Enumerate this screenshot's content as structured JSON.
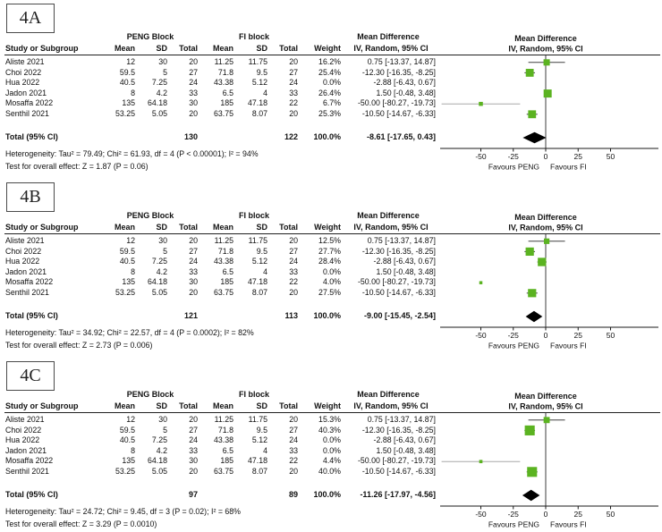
{
  "colors": {
    "marker_green": "#5bb321",
    "diamond_black": "#000000",
    "ci_line": "#404040",
    "ci_line_muted": "#a8a8a8",
    "axis": "#1a1a1a",
    "zero_line": "#3c3c3c"
  },
  "chart_data": [
    {
      "type": "table",
      "subtype": "forest-plot-mean-difference",
      "panel": "4A",
      "group_headers": [
        "PENG Block",
        "FI block"
      ],
      "columns": [
        "Study or Subgroup",
        "Mean",
        "SD",
        "Total",
        "Mean",
        "SD",
        "Total",
        "Weight"
      ],
      "effect_header": [
        "Mean Difference",
        "IV, Random, 95% CI"
      ],
      "rows": [
        {
          "study": "Aliste 2021",
          "mean1": "12",
          "sd1": "30",
          "total1": "20",
          "mean2": "11.25",
          "sd2": "11.75",
          "total2": "20",
          "weight": "16.2%",
          "ci_text": "0.75 [-13.37, 14.87]",
          "est": 0.75,
          "lo": -13.37,
          "hi": 14.87,
          "wt": 16.2
        },
        {
          "study": "Choi 2022",
          "mean1": "59.5",
          "sd1": "5",
          "total1": "27",
          "mean2": "71.8",
          "sd2": "9.5",
          "total2": "27",
          "weight": "25.4%",
          "ci_text": "-12.30 [-16.35, -8.25]",
          "est": -12.3,
          "lo": -16.35,
          "hi": -8.25,
          "wt": 25.4
        },
        {
          "study": "Hua 2022",
          "mean1": "40.5",
          "sd1": "7.25",
          "total1": "24",
          "mean2": "43.38",
          "sd2": "5.12",
          "total2": "24",
          "weight": "0.0%",
          "ci_text": "-2.88 [-6.43, 0.67]",
          "est": -2.88,
          "lo": -6.43,
          "hi": 0.67,
          "wt": 0
        },
        {
          "study": "Jadon 2021",
          "mean1": "8",
          "sd1": "4.2",
          "total1": "33",
          "mean2": "6.5",
          "sd2": "4",
          "total2": "33",
          "weight": "26.4%",
          "ci_text": "1.50 [-0.48, 3.48]",
          "est": 1.5,
          "lo": -0.48,
          "hi": 3.48,
          "wt": 26.4
        },
        {
          "study": "Mosaffa 2022",
          "mean1": "135",
          "sd1": "64.18",
          "total1": "30",
          "mean2": "185",
          "sd2": "47.18",
          "total2": "22",
          "weight": "6.7%",
          "ci_text": "-50.00 [-80.27, -19.73]",
          "est": -50,
          "lo": -80.27,
          "hi": -19.73,
          "wt": 6.7,
          "muted_line": true
        },
        {
          "study": "Senthil 2021",
          "mean1": "53.25",
          "sd1": "5.05",
          "total1": "20",
          "mean2": "63.75",
          "sd2": "8.07",
          "total2": "20",
          "weight": "25.3%",
          "ci_text": "-10.50 [-14.67, -6.33]",
          "est": -10.5,
          "lo": -14.67,
          "hi": -6.33,
          "wt": 25.3
        }
      ],
      "total": {
        "label": "Total (95% CI)",
        "total1": "130",
        "total2": "122",
        "weight": "100.0%",
        "ci_text": "-8.61 [-17.65, 0.43]",
        "est": -8.61,
        "lo": -17.65,
        "hi": 0.43
      },
      "heterogeneity": "Heterogeneity: Tau² = 79.49; Chi² = 61.93, df = 4 (P < 0.00001); I² = 94%",
      "overall_effect": "Test for overall effect: Z = 1.87 (P = 0.06)",
      "axis": {
        "tick_labels": [
          "-50",
          "-25",
          "0",
          "25",
          "50"
        ],
        "tick_values": [
          -50,
          -25,
          0,
          25,
          50
        ],
        "favours_left": "Favours PENG",
        "favours_right": "Favours FI"
      }
    },
    {
      "type": "table",
      "subtype": "forest-plot-mean-difference",
      "panel": "4B",
      "group_headers": [
        "PENG Block",
        "FI block"
      ],
      "columns": [
        "Study or Subgroup",
        "Mean",
        "SD",
        "Total",
        "Mean",
        "SD",
        "Total",
        "Weight"
      ],
      "effect_header": [
        "Mean Difference",
        "IV, Random, 95% CI"
      ],
      "rows": [
        {
          "study": "Aliste 2021",
          "mean1": "12",
          "sd1": "30",
          "total1": "20",
          "mean2": "11.25",
          "sd2": "11.75",
          "total2": "20",
          "weight": "12.5%",
          "ci_text": "0.75 [-13.37, 14.87]",
          "est": 0.75,
          "lo": -13.37,
          "hi": 14.87,
          "wt": 12.5
        },
        {
          "study": "Choi 2022",
          "mean1": "59.5",
          "sd1": "5",
          "total1": "27",
          "mean2": "71.8",
          "sd2": "9.5",
          "total2": "27",
          "weight": "27.7%",
          "ci_text": "-12.30 [-16.35, -8.25]",
          "est": -12.3,
          "lo": -16.35,
          "hi": -8.25,
          "wt": 27.7
        },
        {
          "study": "Hua 2022",
          "mean1": "40.5",
          "sd1": "7.25",
          "total1": "24",
          "mean2": "43.38",
          "sd2": "5.12",
          "total2": "24",
          "weight": "28.4%",
          "ci_text": "-2.88 [-6.43, 0.67]",
          "est": -2.88,
          "lo": -6.43,
          "hi": 0.67,
          "wt": 28.4
        },
        {
          "study": "Jadon 2021",
          "mean1": "8",
          "sd1": "4.2",
          "total1": "33",
          "mean2": "6.5",
          "sd2": "4",
          "total2": "33",
          "weight": "0.0%",
          "ci_text": "1.50 [-0.48, 3.48]",
          "est": 1.5,
          "lo": -0.48,
          "hi": 3.48,
          "wt": 0
        },
        {
          "study": "Mosaffa 2022",
          "mean1": "135",
          "sd1": "64.18",
          "total1": "30",
          "mean2": "185",
          "sd2": "47.18",
          "total2": "22",
          "weight": "4.0%",
          "ci_text": "-50.00 [-80.27, -19.73]",
          "est": -50,
          "lo": -80.27,
          "hi": -19.73,
          "wt": 4.0,
          "show_line": false
        },
        {
          "study": "Senthil 2021",
          "mean1": "53.25",
          "sd1": "5.05",
          "total1": "20",
          "mean2": "63.75",
          "sd2": "8.07",
          "total2": "20",
          "weight": "27.5%",
          "ci_text": "-10.50 [-14.67, -6.33]",
          "est": -10.5,
          "lo": -14.67,
          "hi": -6.33,
          "wt": 27.5
        }
      ],
      "total": {
        "label": "Total (95% CI)",
        "total1": "121",
        "total2": "113",
        "weight": "100.0%",
        "ci_text": "-9.00 [-15.45, -2.54]",
        "est": -9.0,
        "lo": -15.45,
        "hi": -2.54
      },
      "heterogeneity": "Heterogeneity: Tau² = 34.92; Chi² = 22.57, df = 4 (P = 0.0002); I² = 82%",
      "overall_effect": "Test for overall effect: Z = 2.73 (P = 0.006)",
      "axis": {
        "tick_labels": [
          "-50",
          "-25",
          "0",
          "25",
          "50"
        ],
        "tick_values": [
          -50,
          -25,
          0,
          25,
          50
        ],
        "favours_left": "Favours PENG",
        "favours_right": "Favours FI"
      }
    },
    {
      "type": "table",
      "subtype": "forest-plot-mean-difference",
      "panel": "4C",
      "group_headers": [
        "PENG Block",
        "FI block"
      ],
      "columns": [
        "Study or Subgroup",
        "Mean",
        "SD",
        "Total",
        "Mean",
        "SD",
        "Total",
        "Weight"
      ],
      "effect_header": [
        "Mean Difference",
        "IV, Random, 95% CI"
      ],
      "rows": [
        {
          "study": "Aliste 2021",
          "mean1": "12",
          "sd1": "30",
          "total1": "20",
          "mean2": "11.25",
          "sd2": "11.75",
          "total2": "20",
          "weight": "15.3%",
          "ci_text": "0.75 [-13.37, 14.87]",
          "est": 0.75,
          "lo": -13.37,
          "hi": 14.87,
          "wt": 15.3
        },
        {
          "study": "Choi 2022",
          "mean1": "59.5",
          "sd1": "5",
          "total1": "27",
          "mean2": "71.8",
          "sd2": "9.5",
          "total2": "27",
          "weight": "40.3%",
          "ci_text": "-12.30 [-16.35, -8.25]",
          "est": -12.3,
          "lo": -16.35,
          "hi": -8.25,
          "wt": 40.3
        },
        {
          "study": "Hua 2022",
          "mean1": "40.5",
          "sd1": "7.25",
          "total1": "24",
          "mean2": "43.38",
          "sd2": "5.12",
          "total2": "24",
          "weight": "0.0%",
          "ci_text": "-2.88 [-6.43, 0.67]",
          "est": -2.88,
          "lo": -6.43,
          "hi": 0.67,
          "wt": 0
        },
        {
          "study": "Jadon 2021",
          "mean1": "8",
          "sd1": "4.2",
          "total1": "33",
          "mean2": "6.5",
          "sd2": "4",
          "total2": "33",
          "weight": "0.0%",
          "ci_text": "1.50 [-0.48, 3.48]",
          "est": 1.5,
          "lo": -0.48,
          "hi": 3.48,
          "wt": 0
        },
        {
          "study": "Mosaffa 2022",
          "mean1": "135",
          "sd1": "64.18",
          "total1": "30",
          "mean2": "185",
          "sd2": "47.18",
          "total2": "22",
          "weight": "4.4%",
          "ci_text": "-50.00 [-80.27, -19.73]",
          "est": -50,
          "lo": -80.27,
          "hi": -19.73,
          "wt": 4.4,
          "muted_line": true
        },
        {
          "study": "Senthil 2021",
          "mean1": "53.25",
          "sd1": "5.05",
          "total1": "20",
          "mean2": "63.75",
          "sd2": "8.07",
          "total2": "20",
          "weight": "40.0%",
          "ci_text": "-10.50 [-14.67, -6.33]",
          "est": -10.5,
          "lo": -14.67,
          "hi": -6.33,
          "wt": 40.0
        }
      ],
      "total": {
        "label": "Total (95% CI)",
        "total1": "97",
        "total2": "89",
        "weight": "100.0%",
        "ci_text": "-11.26 [-17.97, -4.56]",
        "est": -11.26,
        "lo": -17.97,
        "hi": -4.56
      },
      "heterogeneity": "Heterogeneity: Tau² = 24.72; Chi² = 9.45, df = 3 (P = 0.02); I² = 68%",
      "overall_effect": "Test for overall effect: Z = 3.29 (P = 0.0010)",
      "axis": {
        "tick_labels": [
          "-50",
          "-25",
          "0",
          "25",
          "50"
        ],
        "tick_values": [
          -50,
          -25,
          0,
          25,
          50
        ],
        "favours_left": "Favours PENG",
        "favours_right": "Favours FI"
      }
    }
  ]
}
